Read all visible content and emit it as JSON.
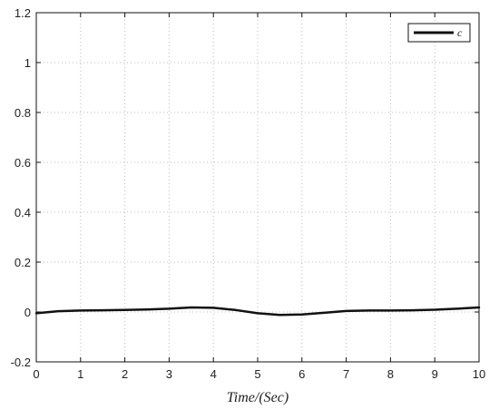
{
  "chart_data": {
    "type": "line",
    "title": "",
    "xlabel": "Time/(Sec)",
    "ylabel": "",
    "xlim": [
      0,
      10
    ],
    "ylim": [
      -0.2,
      1.2
    ],
    "xticks": [
      "0",
      "1",
      "2",
      "3",
      "4",
      "5",
      "6",
      "7",
      "8",
      "9",
      "10"
    ],
    "yticks": [
      "-0.2",
      "0",
      "0.2",
      "0.4",
      "0.6",
      "0.8",
      "1",
      "1.2"
    ],
    "grid": true,
    "legend_position": "top-right",
    "colors": {
      "line": "#111111",
      "axes": "#111111",
      "grid": "#bdbdbd"
    },
    "series": [
      {
        "name": "c",
        "x": [
          0,
          0.5,
          1,
          1.5,
          2,
          2.5,
          3,
          3.5,
          4,
          4.5,
          5,
          5.5,
          6,
          6.5,
          7,
          7.5,
          8,
          8.5,
          9,
          9.5,
          10
        ],
        "y": [
          -0.005,
          0.003,
          0.006,
          0.007,
          0.008,
          0.01,
          0.013,
          0.018,
          0.017,
          0.008,
          -0.005,
          -0.012,
          -0.01,
          -0.003,
          0.004,
          0.006,
          0.006,
          0.007,
          0.009,
          0.013,
          0.018
        ]
      }
    ]
  }
}
